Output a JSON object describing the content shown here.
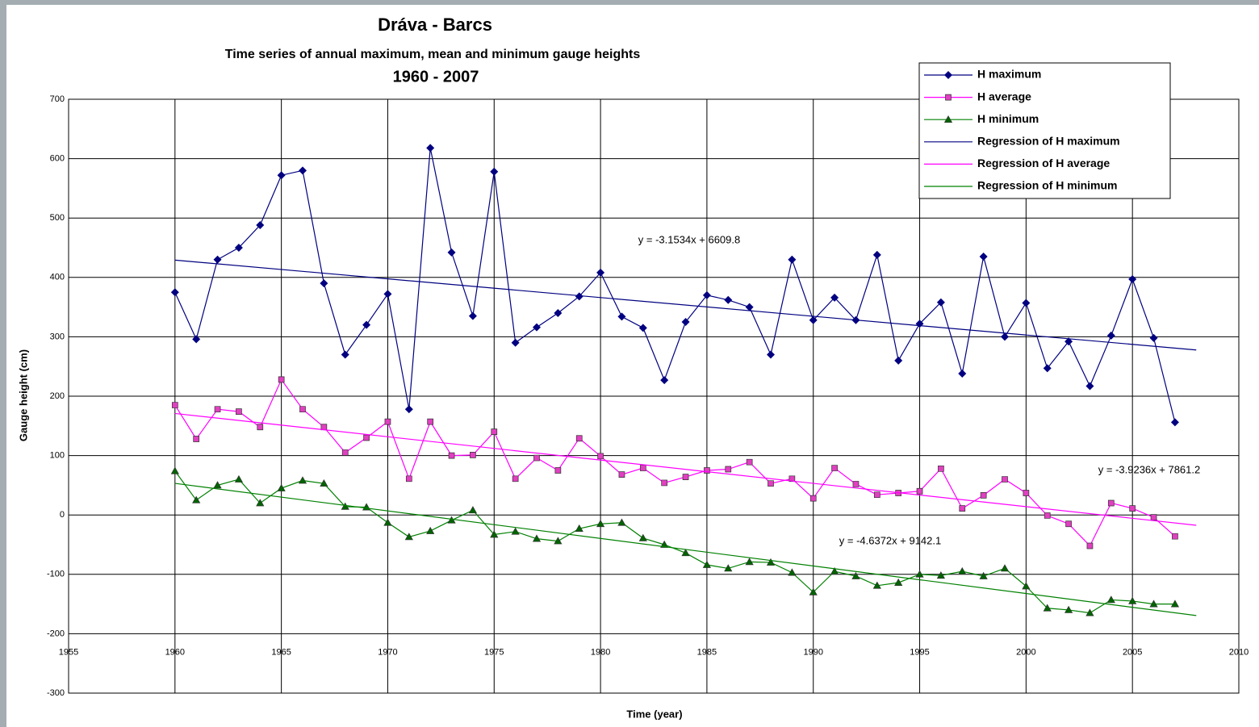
{
  "chart_data": {
    "type": "line",
    "title": "Dráva - Barcs",
    "subtitle": "Time series of annual maximum, mean and minimum gauge heights",
    "period": "1960 - 2007",
    "x_label": "Time (year)",
    "y_label": "Gauge height (cm)",
    "xlim": [
      1955,
      2010
    ],
    "xticks": [
      1955,
      1960,
      1965,
      1970,
      1975,
      1980,
      1985,
      1990,
      1995,
      2000,
      2005,
      2010
    ],
    "ylim": [
      -300,
      700
    ],
    "yticks": [
      -300,
      -200,
      -100,
      0,
      100,
      200,
      300,
      400,
      500,
      600,
      700
    ],
    "x_axis_crosses": -200,
    "grid": true,
    "legend": "upper right",
    "x": [
      1960,
      1961,
      1962,
      1963,
      1964,
      1965,
      1966,
      1967,
      1968,
      1969,
      1970,
      1971,
      1972,
      1973,
      1974,
      1975,
      1976,
      1977,
      1978,
      1979,
      1980,
      1981,
      1982,
      1983,
      1984,
      1985,
      1986,
      1987,
      1988,
      1989,
      1990,
      1991,
      1992,
      1993,
      1994,
      1995,
      1996,
      1997,
      1998,
      1999,
      2000,
      2001,
      2002,
      2003,
      2004,
      2005,
      2006,
      2007
    ],
    "series": [
      {
        "name": "H maximum",
        "color": "#000080",
        "marker": "diamond",
        "marker_color": "#000080",
        "values": [
          375,
          296,
          430,
          450,
          488,
          572,
          580,
          390,
          270,
          320,
          372,
          178,
          618,
          442,
          335,
          578,
          290,
          316,
          340,
          368,
          408,
          334,
          315,
          227,
          325,
          370,
          362,
          350,
          270,
          430,
          328,
          366,
          328,
          438,
          260,
          322,
          358,
          238,
          435,
          300,
          357,
          247,
          292,
          217,
          302,
          397,
          298,
          156
        ]
      },
      {
        "name": "H average",
        "color": "#ff00ff",
        "marker": "square",
        "marker_color": "#e040c0",
        "values": [
          185,
          128,
          178,
          174,
          148,
          228,
          178,
          148,
          105,
          130,
          157,
          61,
          157,
          100,
          101,
          140,
          61,
          96,
          75,
          129,
          99,
          68,
          79,
          54,
          64,
          75,
          77,
          89,
          53,
          61,
          28,
          79,
          52,
          34,
          37,
          40,
          78,
          11,
          33,
          60,
          37,
          -1,
          -15,
          -52,
          20,
          11,
          -4,
          -36
        ]
      },
      {
        "name": "H minimum",
        "color": "#008000",
        "marker": "triangle",
        "marker_color": "#006400",
        "values": [
          74,
          25,
          50,
          60,
          20,
          45,
          58,
          53,
          14,
          13,
          -13,
          -37,
          -27,
          -9,
          8,
          -33,
          -28,
          -40,
          -44,
          -23,
          -15,
          -13,
          -39,
          -50,
          -64,
          -84,
          -90,
          -79,
          -80,
          -97,
          -130,
          -95,
          -103,
          -119,
          -114,
          -100,
          -102,
          -95,
          -103,
          -90,
          -120,
          -157,
          -160,
          -165,
          -143,
          -145,
          -150,
          -150
        ]
      },
      {
        "name": "Regression of H maximum",
        "color": "#000080",
        "x": [
          1960,
          2008
        ],
        "values": [
          429.1,
          277.8
        ]
      },
      {
        "name": "Regression of H average",
        "color": "#ff00ff",
        "x": [
          1960,
          2008
        ],
        "values": [
          170.9,
          -17.4
        ]
      },
      {
        "name": "Regression of H minimum",
        "color": "#008000",
        "x": [
          1960,
          2008
        ],
        "values": [
          53.2,
          -169.4
        ]
      }
    ],
    "annotations": [
      {
        "text": "y = -3.1534x + 6609.8",
        "color": "#000080"
      },
      {
        "text": "y = -3.9236x + 7861.2",
        "color": "#ff00ff"
      },
      {
        "text": "y = -4.6372x + 9142.1",
        "color": "#339966"
      }
    ]
  }
}
